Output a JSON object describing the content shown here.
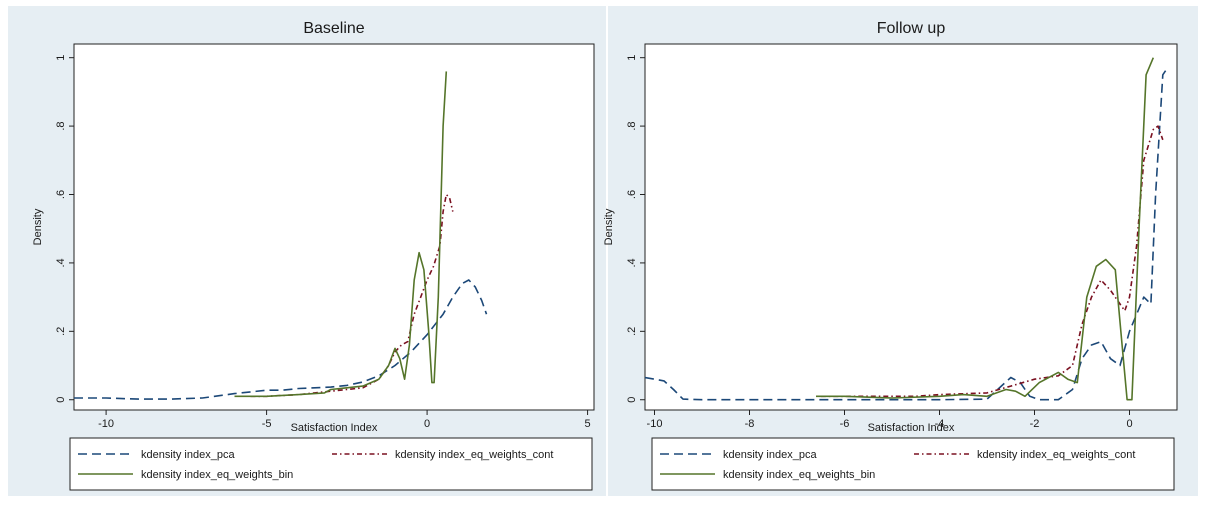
{
  "colors": {
    "background": "#e6eef3",
    "plot_background": "#ffffff",
    "pca": "#1c4878",
    "eq_weights_cont": "#7a1020",
    "eq_weights_bin": "#55752a"
  },
  "chart_data": [
    {
      "type": "line",
      "title": "Baseline",
      "xlabel": "Satisfaction Index",
      "ylabel": "Density",
      "xlim": [
        -11,
        5.2
      ],
      "ylim": [
        -0.03,
        1.04
      ],
      "xticks": [
        -10,
        -5,
        0,
        5
      ],
      "xtick_labels": [
        "-10",
        "-5",
        "0",
        "5"
      ],
      "yticks": [
        0,
        0.2,
        0.4,
        0.6,
        0.8,
        1
      ],
      "ytick_labels": [
        "0",
        ".2",
        ".4",
        ".6",
        ".8",
        "1"
      ],
      "grid": false,
      "legend_position": "bottom",
      "legend": [
        "kdensity index_pca",
        "kdensity index_eq_weights_cont",
        "kdensity index_eq_weights_bin"
      ],
      "series": [
        {
          "name": "kdensity index_pca",
          "style": "dashed",
          "color_key": "pca",
          "points": [
            [
              -11,
              0.005
            ],
            [
              -10,
              0.005
            ],
            [
              -9,
              0.002
            ],
            [
              -8,
              0.002
            ],
            [
              -7,
              0.005
            ],
            [
              -6,
              0.018
            ],
            [
              -5,
              0.028
            ],
            [
              -4.5,
              0.028
            ],
            [
              -4,
              0.033
            ],
            [
              -3.5,
              0.035
            ],
            [
              -3,
              0.037
            ],
            [
              -2.5,
              0.042
            ],
            [
              -2,
              0.052
            ],
            [
              -1.5,
              0.07
            ],
            [
              -1,
              0.1
            ],
            [
              -0.5,
              0.14
            ],
            [
              0,
              0.19
            ],
            [
              0.5,
              0.25
            ],
            [
              0.8,
              0.3
            ],
            [
              1.1,
              0.34
            ],
            [
              1.3,
              0.35
            ],
            [
              1.5,
              0.33
            ],
            [
              1.7,
              0.29
            ],
            [
              1.85,
              0.25
            ]
          ]
        },
        {
          "name": "kdensity index_eq_weights_cont",
          "style": "dash-dot",
          "color_key": "eq_weights_cont",
          "points": [
            [
              -5.5,
              0.01
            ],
            [
              -5,
              0.01
            ],
            [
              -4,
              0.015
            ],
            [
              -3.5,
              0.02
            ],
            [
              -3,
              0.025
            ],
            [
              -2.5,
              0.03
            ],
            [
              -2,
              0.035
            ],
            [
              -1.5,
              0.06
            ],
            [
              -1.2,
              0.1
            ],
            [
              -1,
              0.14
            ],
            [
              -0.8,
              0.16
            ],
            [
              -0.6,
              0.17
            ],
            [
              -0.4,
              0.25
            ],
            [
              -0.2,
              0.3
            ],
            [
              0,
              0.35
            ],
            [
              0.2,
              0.39
            ],
            [
              0.4,
              0.45
            ],
            [
              0.5,
              0.55
            ],
            [
              0.6,
              0.6
            ],
            [
              0.7,
              0.59
            ],
            [
              0.8,
              0.55
            ]
          ]
        },
        {
          "name": "kdensity index_eq_weights_bin",
          "style": "solid",
          "color_key": "eq_weights_bin",
          "points": [
            [
              -6,
              0.01
            ],
            [
              -5,
              0.01
            ],
            [
              -4,
              0.015
            ],
            [
              -3.2,
              0.02
            ],
            [
              -3,
              0.03
            ],
            [
              -2.5,
              0.035
            ],
            [
              -2,
              0.04
            ],
            [
              -1.5,
              0.06
            ],
            [
              -1.2,
              0.1
            ],
            [
              -1,
              0.15
            ],
            [
              -0.85,
              0.12
            ],
            [
              -0.7,
              0.06
            ],
            [
              -0.55,
              0.16
            ],
            [
              -0.4,
              0.35
            ],
            [
              -0.25,
              0.43
            ],
            [
              -0.1,
              0.38
            ],
            [
              0.05,
              0.2
            ],
            [
              0.15,
              0.05
            ],
            [
              0.22,
              0.05
            ],
            [
              0.35,
              0.3
            ],
            [
              0.5,
              0.8
            ],
            [
              0.6,
              0.96
            ]
          ]
        }
      ]
    },
    {
      "type": "line",
      "title": "Follow up",
      "xlabel": "Satisfaction Index",
      "ylabel": "Density",
      "xlim": [
        -10.2,
        1.0
      ],
      "ylim": [
        -0.03,
        1.04
      ],
      "xticks": [
        -10,
        -8,
        -6,
        -4,
        -2,
        0
      ],
      "xtick_labels": [
        "-10",
        "-8",
        "-6",
        "-4",
        "-2",
        "0"
      ],
      "yticks": [
        0,
        0.2,
        0.4,
        0.6,
        0.8,
        1
      ],
      "ytick_labels": [
        "0",
        ".2",
        ".4",
        ".6",
        ".8",
        "1"
      ],
      "grid": false,
      "legend_position": "bottom",
      "legend": [
        "kdensity index_pca",
        "kdensity index_eq_weights_cont",
        "kdensity index_eq_weights_bin"
      ],
      "series": [
        {
          "name": "kdensity index_pca",
          "style": "dashed",
          "color_key": "pca",
          "points": [
            [
              -10.2,
              0.065
            ],
            [
              -9.8,
              0.055
            ],
            [
              -9.6,
              0.03
            ],
            [
              -9.4,
              0.002
            ],
            [
              -9,
              0.0
            ],
            [
              -8,
              0.0
            ],
            [
              -6,
              0.0
            ],
            [
              -4,
              0.0
            ],
            [
              -3,
              0.002
            ],
            [
              -2.7,
              0.04
            ],
            [
              -2.5,
              0.065
            ],
            [
              -2.3,
              0.05
            ],
            [
              -2.1,
              0.01
            ],
            [
              -1.9,
              0.0
            ],
            [
              -1.5,
              0.0
            ],
            [
              -1.2,
              0.03
            ],
            [
              -1,
              0.12
            ],
            [
              -0.8,
              0.16
            ],
            [
              -0.6,
              0.17
            ],
            [
              -0.4,
              0.12
            ],
            [
              -0.2,
              0.1
            ],
            [
              0,
              0.2
            ],
            [
              0.3,
              0.3
            ],
            [
              0.45,
              0.28
            ],
            [
              0.55,
              0.6
            ],
            [
              0.7,
              0.95
            ],
            [
              0.8,
              0.97
            ]
          ]
        },
        {
          "name": "kdensity index_eq_weights_cont",
          "style": "dash-dot",
          "color_key": "eq_weights_cont",
          "points": [
            [
              -6.5,
              0.01
            ],
            [
              -5.5,
              0.01
            ],
            [
              -5,
              0.01
            ],
            [
              -4.5,
              0.01
            ],
            [
              -4,
              0.015
            ],
            [
              -3,
              0.02
            ],
            [
              -2.5,
              0.04
            ],
            [
              -2,
              0.06
            ],
            [
              -1.5,
              0.07
            ],
            [
              -1.2,
              0.1
            ],
            [
              -1,
              0.22
            ],
            [
              -0.8,
              0.3
            ],
            [
              -0.6,
              0.35
            ],
            [
              -0.4,
              0.32
            ],
            [
              -0.2,
              0.28
            ],
            [
              -0.1,
              0.26
            ],
            [
              0.0,
              0.3
            ],
            [
              0.15,
              0.45
            ],
            [
              0.3,
              0.7
            ],
            [
              0.5,
              0.79
            ],
            [
              0.6,
              0.8
            ],
            [
              0.7,
              0.76
            ]
          ]
        },
        {
          "name": "kdensity index_eq_weights_bin",
          "style": "solid",
          "color_key": "eq_weights_bin",
          "points": [
            [
              -6.6,
              0.01
            ],
            [
              -6,
              0.01
            ],
            [
              -5,
              0.005
            ],
            [
              -4,
              0.01
            ],
            [
              -3.5,
              0.015
            ],
            [
              -3,
              0.01
            ],
            [
              -2.6,
              0.03
            ],
            [
              -2.4,
              0.025
            ],
            [
              -2.2,
              0.01
            ],
            [
              -1.9,
              0.05
            ],
            [
              -1.5,
              0.08
            ],
            [
              -1.3,
              0.06
            ],
            [
              -1.1,
              0.05
            ],
            [
              -0.9,
              0.3
            ],
            [
              -0.7,
              0.39
            ],
            [
              -0.5,
              0.41
            ],
            [
              -0.3,
              0.38
            ],
            [
              -0.15,
              0.15
            ],
            [
              -0.05,
              0.0
            ],
            [
              0.05,
              0.0
            ],
            [
              0.2,
              0.5
            ],
            [
              0.35,
              0.95
            ],
            [
              0.5,
              1.0
            ]
          ]
        }
      ]
    }
  ]
}
